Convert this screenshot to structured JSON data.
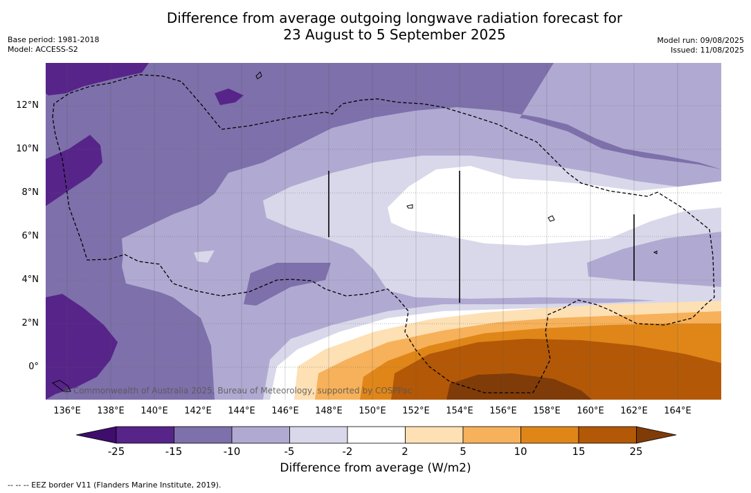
{
  "header": {
    "title_line1": "Difference from average outgoing longwave radiation forecast for",
    "title_line2": "23 August to 5 September 2025",
    "base_period": "Base period: 1981-2018",
    "model": "Model: ACCESS-S2",
    "model_run": "Model run: 09/08/2025",
    "issued": "Issued: 11/08/2025"
  },
  "map": {
    "lat_ticks": [
      "12°N",
      "10°N",
      "8°N",
      "6°N",
      "4°N",
      "2°N",
      "0°"
    ],
    "lon_ticks": [
      "136°E",
      "138°E",
      "140°E",
      "142°E",
      "144°E",
      "146°E",
      "148°E",
      "150°E",
      "152°E",
      "154°E",
      "156°E",
      "158°E",
      "160°E",
      "162°E",
      "164°E"
    ],
    "copyright": "© Commonwealth of Australia 2025, Bureau of Meteorology, supported by COSPPac",
    "eez_line_style": "dashed",
    "colors": {
      "c_m25": "#3f0d6b",
      "c_m15": "#57248a",
      "c_m10": "#7e70aa",
      "c_m5": "#b0aad2",
      "c_m2": "#d8d8ea",
      "c_0": "#ffffff",
      "c_2": "#fde0b4",
      "c_5": "#f6b15a",
      "c_10": "#e08619",
      "c_15": "#b35806",
      "c_25": "#7f3b08"
    }
  },
  "colorbar": {
    "ticks": [
      "-25",
      "-15",
      "-10",
      "-5",
      "-2",
      "2",
      "5",
      "10",
      "15",
      "25"
    ],
    "title": "Difference from average (W/m2)"
  },
  "footnote": "--  --  -- EEZ border V11 (Flanders Marine Institute, 2019)."
}
